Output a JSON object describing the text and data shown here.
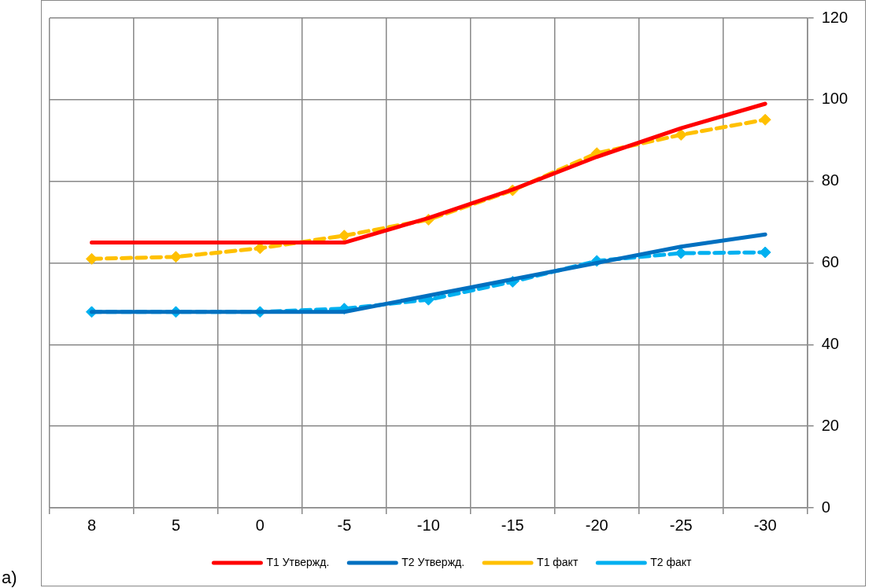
{
  "chart_data": {
    "type": "line",
    "categories": [
      "8",
      "5",
      "0",
      "-5",
      "-10",
      "-15",
      "-20",
      "-25",
      "-30"
    ],
    "series": [
      {
        "name": "T1 Утвержд.",
        "color": "#ff0000",
        "marker": "none",
        "line_style": "solid",
        "values": [
          65,
          65,
          65,
          65,
          71,
          78,
          86,
          93,
          99
        ]
      },
      {
        "name": "T2 Утвержд.",
        "color": "#0070c0",
        "marker": "none",
        "line_style": "solid",
        "values": [
          48,
          48,
          48,
          48,
          52,
          56,
          60,
          64,
          67
        ]
      },
      {
        "name": "T1 факт",
        "color": "#ffc000",
        "marker": "diamond",
        "line_style": "dashed",
        "values": [
          61,
          61.5,
          63.6,
          66.7,
          70.6,
          77.8,
          86.9,
          91.4,
          95.1
        ]
      },
      {
        "name": "T2 факт",
        "color": "#00b0f0",
        "marker": "diamond",
        "line_style": "dashed",
        "values": [
          48,
          48,
          48,
          48.8,
          51,
          55.4,
          60.5,
          62.4,
          62.6
        ]
      }
    ],
    "ylim": [
      0,
      120
    ],
    "yticks": [
      0,
      20,
      40,
      60,
      80,
      100,
      120
    ],
    "grid": true,
    "legend": "bottom",
    "annotations": [
      "а)"
    ]
  }
}
